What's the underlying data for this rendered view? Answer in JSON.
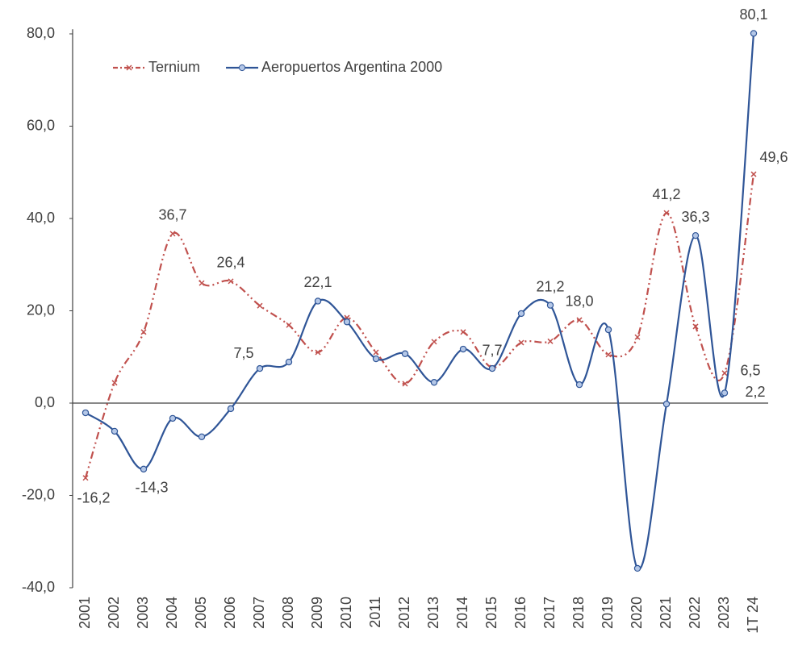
{
  "chart_data": {
    "type": "line",
    "categories": [
      "2001",
      "2002",
      "2003",
      "2004",
      "2005",
      "2006",
      "2007",
      "2008",
      "2009",
      "2010",
      "2011",
      "2012",
      "2013",
      "2014",
      "2015",
      "2016",
      "2017",
      "2018",
      "2019",
      "2020",
      "2021",
      "2022",
      "2023",
      "1T 24"
    ],
    "series": [
      {
        "name": "Ternium",
        "color": "#c0504d",
        "marker": "x",
        "values": [
          -16.2,
          4.4,
          15.4,
          36.7,
          26.0,
          26.4,
          21.1,
          16.9,
          11.0,
          18.5,
          11.0,
          4.2,
          13.3,
          15.4,
          7.7,
          13.1,
          13.4,
          18.0,
          10.5,
          14.3,
          41.2,
          16.6,
          6.5,
          49.6
        ],
        "value_labels": [
          "-16,2",
          null,
          null,
          "36,7",
          null,
          "26,4",
          null,
          null,
          null,
          null,
          null,
          null,
          null,
          null,
          "7,7",
          null,
          null,
          "18,0",
          null,
          null,
          "41,2",
          null,
          "6,5",
          "49,6"
        ]
      },
      {
        "name": "Aeropuertos Argentina 2000",
        "color": "#2f5597",
        "marker": "circle",
        "values": [
          -2.1,
          -6.1,
          -14.3,
          -3.3,
          -7.3,
          -1.2,
          7.5,
          8.9,
          22.1,
          17.6,
          9.6,
          10.7,
          4.5,
          11.7,
          7.5,
          19.4,
          21.2,
          4.0,
          15.9,
          -35.8,
          -0.2,
          36.3,
          2.2,
          80.1
        ],
        "value_labels": [
          null,
          null,
          "-14,3",
          null,
          null,
          null,
          "7,5",
          null,
          "22,1",
          null,
          null,
          null,
          null,
          null,
          null,
          null,
          "21,2",
          null,
          null,
          null,
          null,
          "36,3",
          "2,2",
          "80,1"
        ]
      }
    ],
    "ylim": [
      -40,
      81
    ],
    "yticks": [
      {
        "value": -40,
        "label": "-40,0"
      },
      {
        "value": -20,
        "label": "-20,0"
      },
      {
        "value": 0,
        "label": "0,0"
      },
      {
        "value": 20,
        "label": "20,0"
      },
      {
        "value": 40,
        "label": "40,0"
      },
      {
        "value": 60,
        "label": "60,0"
      },
      {
        "value": 80,
        "label": "80,0"
      }
    ],
    "grid": false,
    "legend": "upper left"
  }
}
